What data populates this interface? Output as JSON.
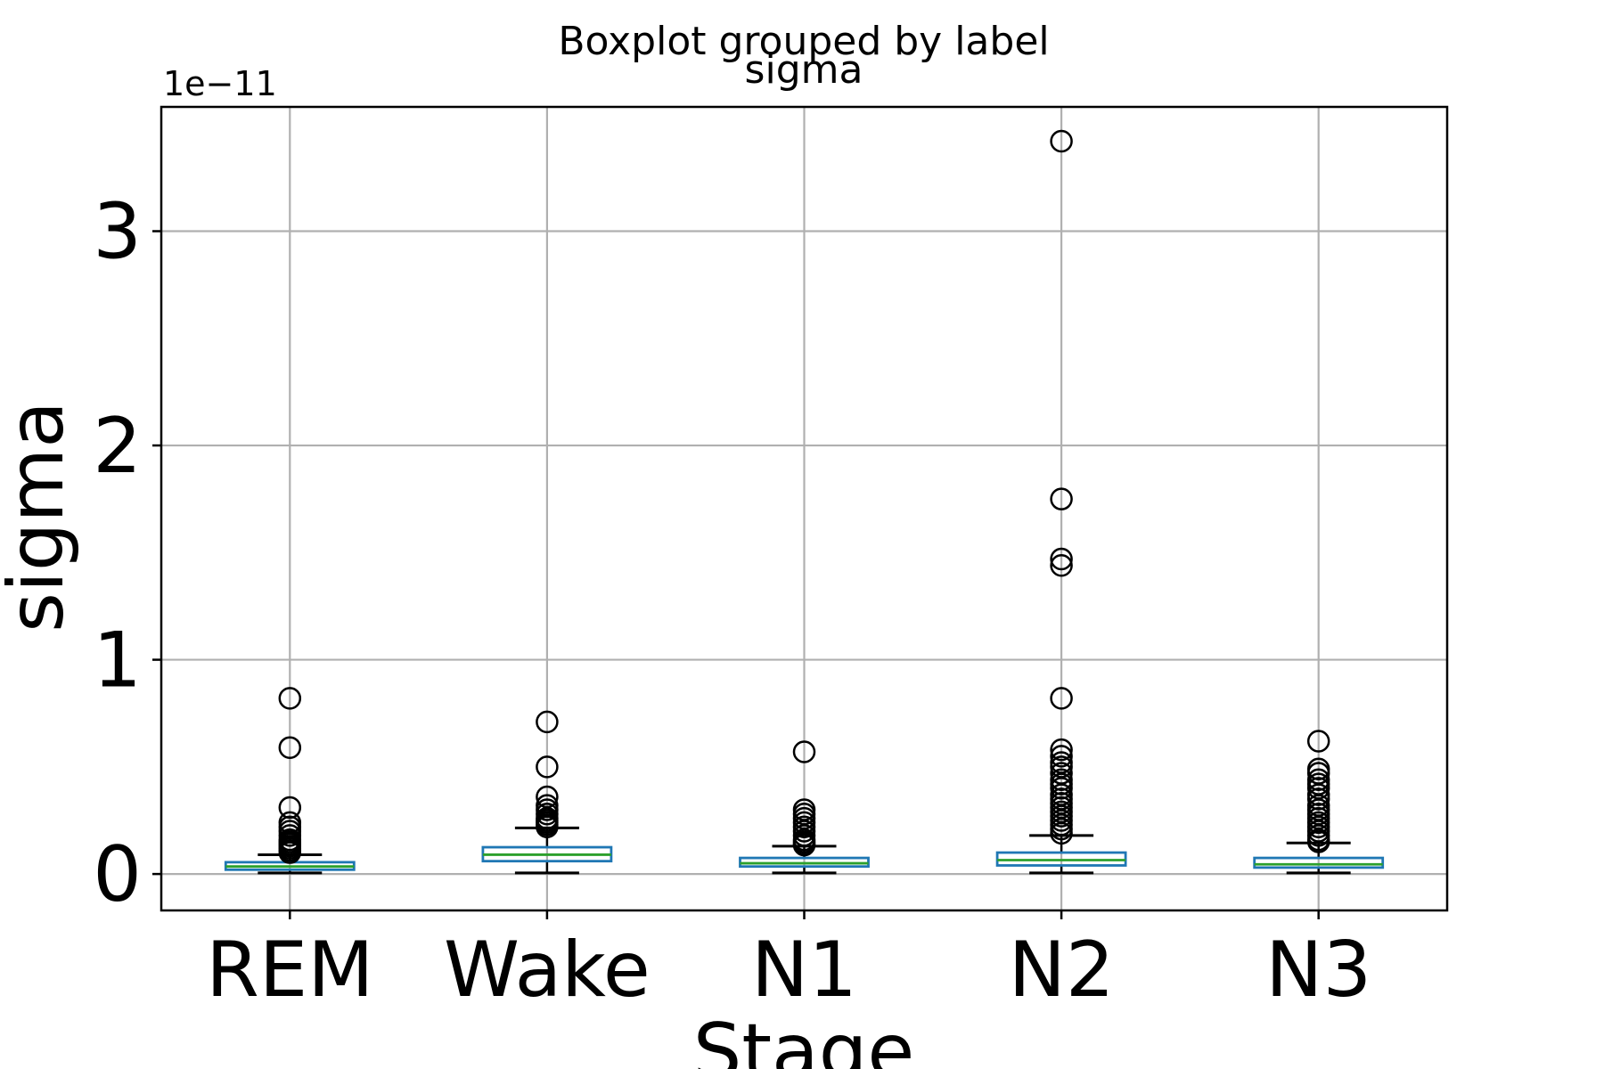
{
  "chart_data": {
    "type": "boxplot",
    "suptitle": "Boxplot grouped by label",
    "title": "sigma",
    "xlabel": "Stage",
    "ylabel": "sigma",
    "y_offset_label": "1e−11",
    "y_scale": 1e-11,
    "ylim": [
      -0.17,
      3.58
    ],
    "yticks": [
      0,
      1,
      2,
      3
    ],
    "ytick_labels": [
      "0",
      "1",
      "2",
      "3"
    ],
    "grid": true,
    "colors": {
      "box": "#1f77b4",
      "median": "#2ca02c",
      "whisker": "#000000",
      "flier": "#000000",
      "grid": "#b0b0b0"
    },
    "categories": [
      "REM",
      "Wake",
      "N1",
      "N2",
      "N3"
    ],
    "boxes": [
      {
        "label": "REM",
        "whislo": 0.005,
        "q1": 0.02,
        "median": 0.035,
        "q3": 0.055,
        "whishi": 0.09,
        "fliers": [
          0.82,
          0.59,
          0.31,
          0.24,
          0.22,
          0.2,
          0.18,
          0.16,
          0.15,
          0.14,
          0.13,
          0.12,
          0.11,
          0.1
        ]
      },
      {
        "label": "Wake",
        "whislo": 0.005,
        "q1": 0.06,
        "median": 0.09,
        "q3": 0.125,
        "whishi": 0.215,
        "fliers": [
          0.71,
          0.5,
          0.36,
          0.32,
          0.3,
          0.28,
          0.26,
          0.25,
          0.24,
          0.23,
          0.22
        ]
      },
      {
        "label": "N1",
        "whislo": 0.005,
        "q1": 0.035,
        "median": 0.05,
        "q3": 0.075,
        "whishi": 0.13,
        "fliers": [
          0.57,
          0.3,
          0.28,
          0.26,
          0.24,
          0.22,
          0.2,
          0.18,
          0.16,
          0.15,
          0.14,
          0.135
        ]
      },
      {
        "label": "N2",
        "whislo": 0.005,
        "q1": 0.04,
        "median": 0.065,
        "q3": 0.1,
        "whishi": 0.18,
        "fliers": [
          3.42,
          1.75,
          1.47,
          1.44,
          0.82,
          0.58,
          0.55,
          0.52,
          0.5,
          0.47,
          0.44,
          0.42,
          0.4,
          0.37,
          0.35,
          0.33,
          0.31,
          0.29,
          0.27,
          0.25,
          0.23,
          0.21,
          0.19
        ]
      },
      {
        "label": "N3",
        "whislo": 0.005,
        "q1": 0.03,
        "median": 0.045,
        "q3": 0.075,
        "whishi": 0.145,
        "fliers": [
          0.62,
          0.49,
          0.47,
          0.44,
          0.42,
          0.4,
          0.37,
          0.35,
          0.32,
          0.3,
          0.28,
          0.26,
          0.24,
          0.22,
          0.2,
          0.18,
          0.16,
          0.15
        ]
      }
    ]
  }
}
